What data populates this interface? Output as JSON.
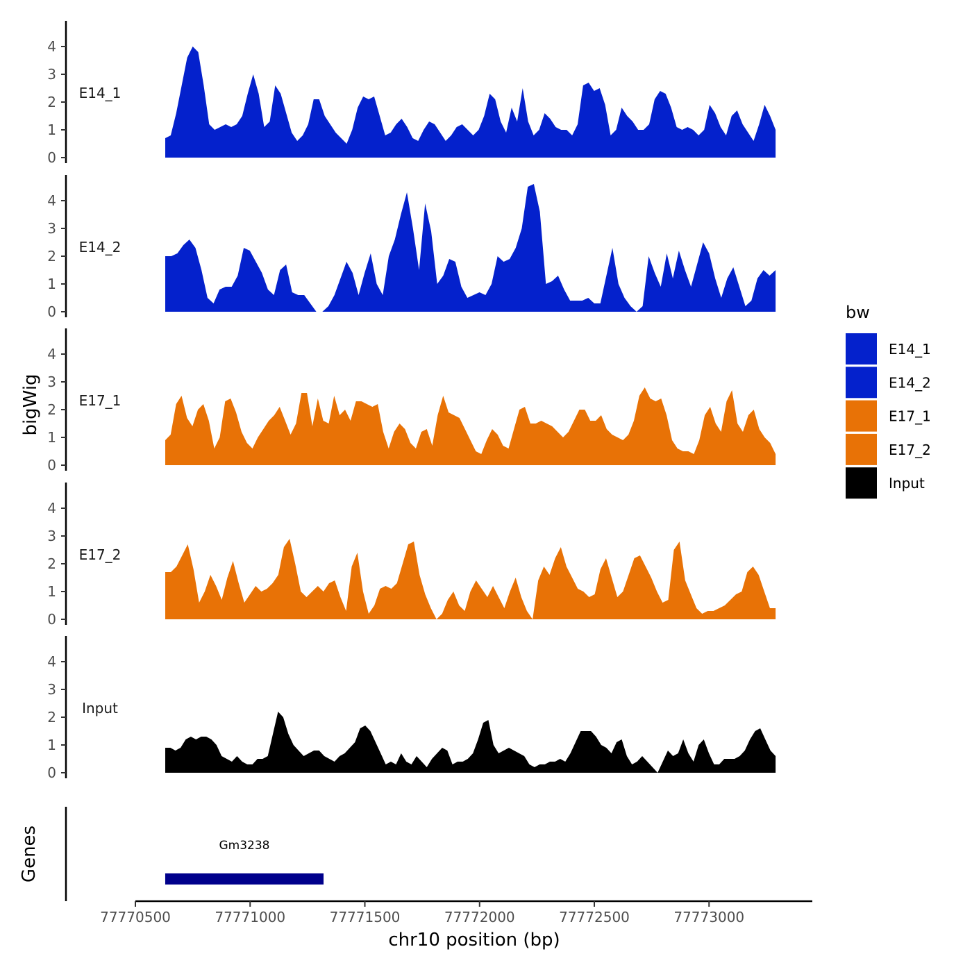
{
  "chart_data": {
    "type": "area",
    "region": "chr10",
    "ylabel": "bigWig",
    "xlabel": "chr10 position (bp)",
    "xlim": [
      77770500,
      77773450
    ],
    "x_range_data": [
      77770630,
      77773290
    ],
    "ylim": [
      0,
      5
    ],
    "yticks": [
      "0",
      "1",
      "2",
      "3",
      "4"
    ],
    "xticks": [
      {
        "value": 77770500,
        "label": "77770500"
      },
      {
        "value": 77771000,
        "label": "77771000"
      },
      {
        "value": 77771500,
        "label": "77771500"
      },
      {
        "value": 77772000,
        "label": "77772000"
      },
      {
        "value": 77772500,
        "label": "77772500"
      },
      {
        "value": 77773000,
        "label": "77773000"
      }
    ],
    "series": [
      {
        "name": "E14_1",
        "color": "#0421CC",
        "values": [
          0.7,
          0.8,
          1.6,
          2.6,
          3.6,
          4.0,
          3.8,
          2.6,
          1.2,
          1.0,
          1.1,
          1.2,
          1.1,
          1.2,
          1.5,
          2.3,
          3.0,
          2.3,
          1.1,
          1.3,
          2.6,
          2.3,
          1.6,
          0.9,
          0.6,
          0.8,
          1.2,
          2.1,
          2.1,
          1.5,
          1.2,
          0.9,
          0.7,
          0.5,
          1.0,
          1.8,
          2.2,
          2.1,
          2.2,
          1.5,
          0.8,
          0.9,
          1.2,
          1.4,
          1.1,
          0.7,
          0.6,
          1.0,
          1.3,
          1.2,
          0.9,
          0.6,
          0.8,
          1.1,
          1.2,
          1.0,
          0.8,
          1.0,
          1.5,
          2.3,
          2.1,
          1.3,
          0.9,
          1.8,
          1.3,
          2.5,
          1.3,
          0.8,
          1.0,
          1.6,
          1.4,
          1.1,
          1.0,
          1.0,
          0.8,
          1.2,
          2.6,
          2.7,
          2.4,
          2.5,
          1.9,
          0.8,
          1.0,
          1.8,
          1.5,
          1.3,
          1.0,
          1.0,
          1.2,
          2.1,
          2.4,
          2.3,
          1.8,
          1.1,
          1.0,
          1.1,
          1.0,
          0.8,
          1.0,
          1.9,
          1.6,
          1.1,
          0.8,
          1.5,
          1.7,
          1.2,
          0.9,
          0.6,
          1.2,
          1.9,
          1.5,
          1.0
        ]
      },
      {
        "name": "E14_2",
        "color": "#0421CC",
        "values": [
          2.0,
          2.0,
          2.1,
          2.4,
          2.6,
          2.3,
          1.5,
          0.5,
          0.3,
          0.8,
          0.9,
          0.9,
          1.3,
          2.3,
          2.2,
          1.8,
          1.4,
          0.8,
          0.6,
          1.5,
          1.7,
          0.7,
          0.6,
          0.6,
          0.3,
          0.0,
          0.0,
          0.2,
          0.6,
          1.2,
          1.8,
          1.4,
          0.6,
          1.4,
          2.1,
          1.0,
          0.6,
          2.0,
          2.6,
          3.5,
          4.3,
          3.0,
          1.5,
          3.9,
          2.9,
          1.0,
          1.3,
          1.9,
          1.8,
          0.9,
          0.5,
          0.6,
          0.7,
          0.6,
          1.0,
          2.0,
          1.8,
          1.9,
          2.3,
          3.0,
          4.5,
          4.6,
          3.6,
          1.0,
          1.1,
          1.3,
          0.8,
          0.4,
          0.4,
          0.4,
          0.5,
          0.3,
          0.3,
          1.3,
          2.3,
          1.0,
          0.5,
          0.2,
          0.0,
          0.2,
          2.0,
          1.4,
          0.9,
          2.1,
          1.2,
          2.2,
          1.5,
          0.9,
          1.7,
          2.5,
          2.1,
          1.2,
          0.5,
          1.2,
          1.6,
          0.9,
          0.2,
          0.4,
          1.2,
          1.5,
          1.3,
          1.5
        ]
      },
      {
        "name": "E17_1",
        "color": "#E87206",
        "values": [
          0.9,
          1.1,
          2.2,
          2.5,
          1.7,
          1.4,
          2.0,
          2.2,
          1.6,
          0.6,
          1.0,
          2.3,
          2.4,
          1.9,
          1.2,
          0.8,
          0.6,
          1.0,
          1.3,
          1.6,
          1.8,
          2.1,
          1.6,
          1.1,
          1.5,
          2.6,
          2.6,
          1.4,
          2.4,
          1.6,
          1.5,
          2.5,
          1.8,
          2.0,
          1.6,
          2.3,
          2.3,
          2.2,
          2.1,
          2.2,
          1.2,
          0.6,
          1.2,
          1.5,
          1.3,
          0.8,
          0.6,
          1.2,
          1.3,
          0.7,
          1.8,
          2.5,
          1.9,
          1.8,
          1.7,
          1.3,
          0.9,
          0.5,
          0.4,
          0.9,
          1.3,
          1.1,
          0.7,
          0.6,
          1.3,
          2.0,
          2.1,
          1.5,
          1.5,
          1.6,
          1.5,
          1.4,
          1.2,
          1.0,
          1.2,
          1.6,
          2.0,
          2.0,
          1.6,
          1.6,
          1.8,
          1.3,
          1.1,
          1.0,
          0.9,
          1.1,
          1.6,
          2.5,
          2.8,
          2.4,
          2.3,
          2.4,
          1.8,
          0.9,
          0.6,
          0.5,
          0.5,
          0.4,
          0.9,
          1.8,
          2.1,
          1.5,
          1.2,
          2.3,
          2.7,
          1.5,
          1.2,
          1.8,
          2.0,
          1.3,
          1.0,
          0.8,
          0.4
        ]
      },
      {
        "name": "E17_2",
        "color": "#E87206",
        "values": [
          1.7,
          1.7,
          1.9,
          2.3,
          2.7,
          1.8,
          0.6,
          1.0,
          1.6,
          1.2,
          0.7,
          1.5,
          2.1,
          1.3,
          0.6,
          0.9,
          1.2,
          1.0,
          1.1,
          1.3,
          1.6,
          2.6,
          2.9,
          2.0,
          1.0,
          0.8,
          1.0,
          1.2,
          1.0,
          1.3,
          1.4,
          0.8,
          0.3,
          1.9,
          2.4,
          1.0,
          0.2,
          0.5,
          1.1,
          1.2,
          1.1,
          1.3,
          2.0,
          2.7,
          2.8,
          1.6,
          0.9,
          0.4,
          0.0,
          0.2,
          0.7,
          1.0,
          0.5,
          0.3,
          1.0,
          1.4,
          1.1,
          0.8,
          1.2,
          0.8,
          0.4,
          1.0,
          1.5,
          0.8,
          0.3,
          0.0,
          1.4,
          1.9,
          1.6,
          2.2,
          2.6,
          1.9,
          1.5,
          1.1,
          1.0,
          0.8,
          0.9,
          1.8,
          2.2,
          1.5,
          0.8,
          1.0,
          1.6,
          2.2,
          2.3,
          1.9,
          1.5,
          1.0,
          0.6,
          0.7,
          2.5,
          2.8,
          1.4,
          0.9,
          0.4,
          0.2,
          0.3,
          0.3,
          0.4,
          0.5,
          0.7,
          0.9,
          1.0,
          1.7,
          1.9,
          1.6,
          1.0,
          0.4,
          0.4
        ]
      },
      {
        "name": "Input",
        "color": "#000000",
        "values": [
          0.9,
          0.9,
          0.8,
          0.9,
          1.2,
          1.3,
          1.2,
          1.3,
          1.3,
          1.2,
          1.0,
          0.6,
          0.5,
          0.4,
          0.6,
          0.4,
          0.3,
          0.3,
          0.5,
          0.5,
          0.6,
          1.4,
          2.2,
          2.0,
          1.4,
          1.0,
          0.8,
          0.6,
          0.7,
          0.8,
          0.8,
          0.6,
          0.5,
          0.4,
          0.6,
          0.7,
          0.9,
          1.1,
          1.6,
          1.7,
          1.5,
          1.1,
          0.7,
          0.3,
          0.4,
          0.3,
          0.7,
          0.4,
          0.3,
          0.6,
          0.4,
          0.2,
          0.5,
          0.7,
          0.9,
          0.8,
          0.3,
          0.4,
          0.4,
          0.5,
          0.7,
          1.2,
          1.8,
          1.9,
          1.0,
          0.7,
          0.8,
          0.9,
          0.8,
          0.7,
          0.6,
          0.3,
          0.2,
          0.3,
          0.3,
          0.4,
          0.4,
          0.5,
          0.4,
          0.7,
          1.1,
          1.5,
          1.5,
          1.5,
          1.3,
          1.0,
          0.9,
          0.7,
          1.1,
          1.2,
          0.6,
          0.3,
          0.4,
          0.6,
          0.4,
          0.2,
          0.0,
          0.4,
          0.8,
          0.6,
          0.7,
          1.2,
          0.7,
          0.4,
          1.0,
          1.2,
          0.7,
          0.3,
          0.3,
          0.5,
          0.5,
          0.5,
          0.6,
          0.8,
          1.2,
          1.5,
          1.6,
          1.2,
          0.8,
          0.6
        ]
      }
    ],
    "genes": {
      "title": "Genes",
      "items": [
        {
          "name": "Gm3238",
          "start": 77770630,
          "end": 77771320,
          "color": "#00008B"
        }
      ]
    },
    "legend": {
      "title": "bw",
      "position": "right"
    }
  }
}
